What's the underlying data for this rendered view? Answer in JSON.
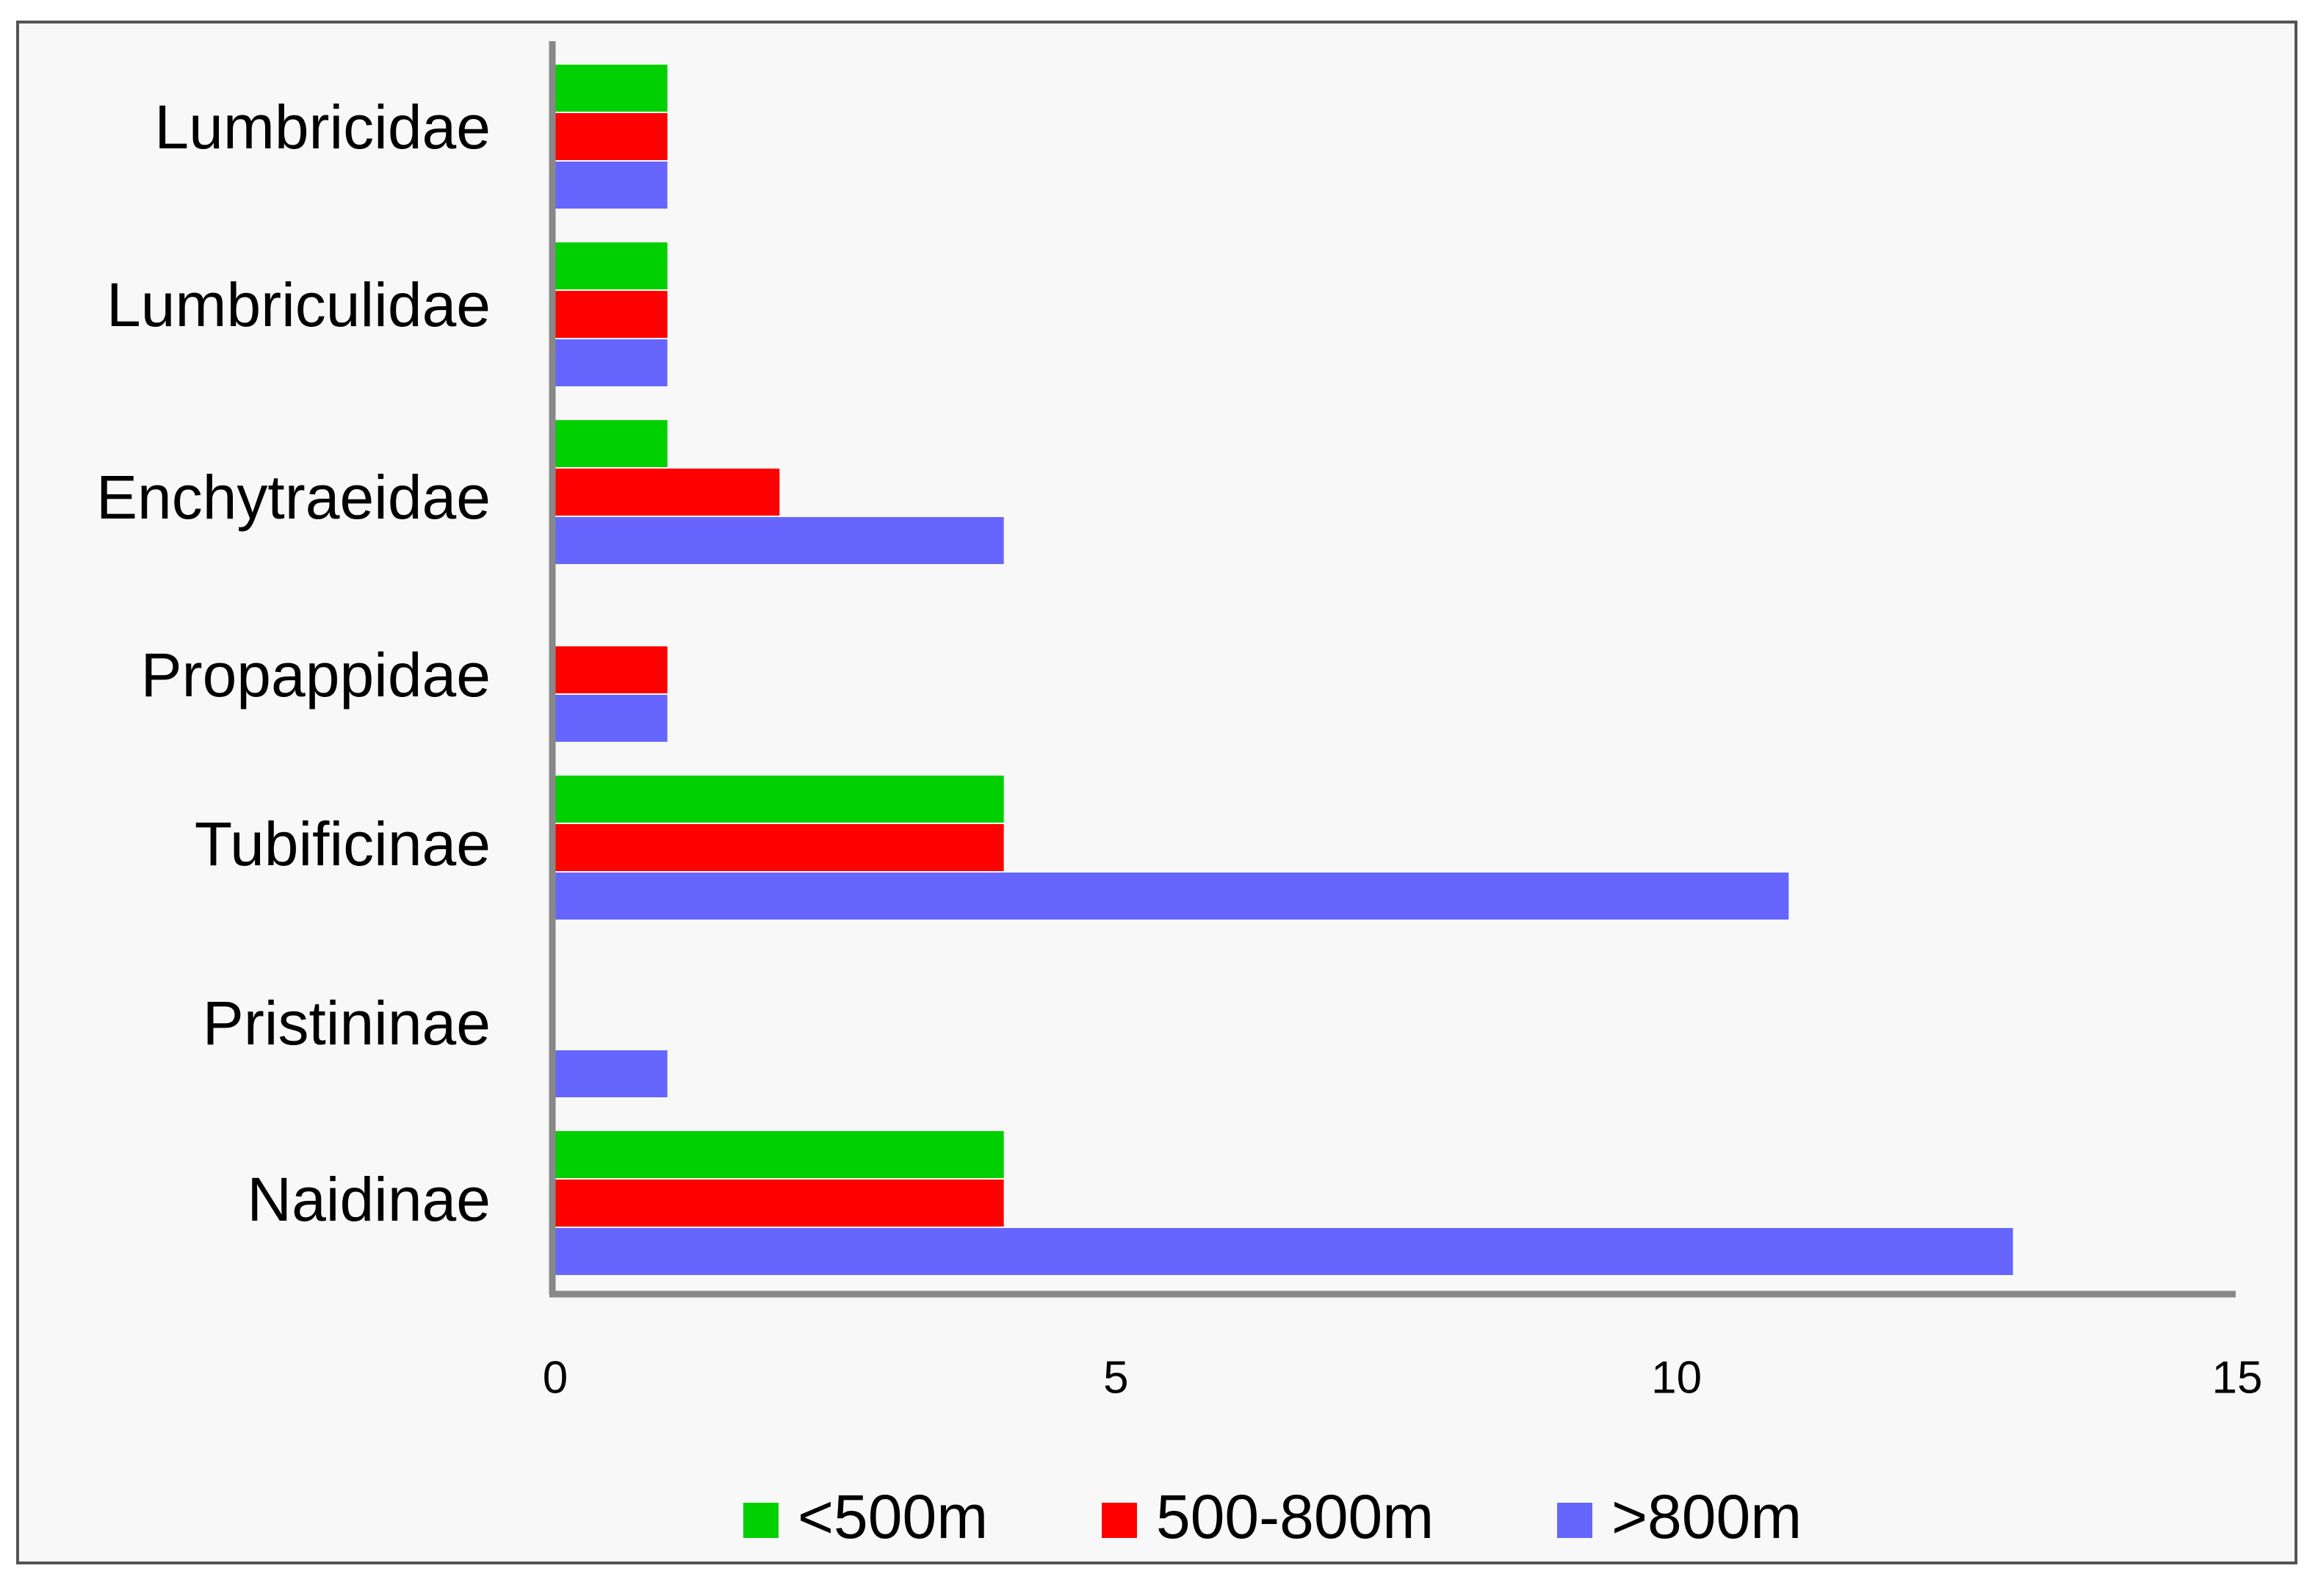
{
  "chart_data": {
    "type": "bar",
    "orientation": "horizontal",
    "categories": [
      "Lumbricidae",
      "Lumbriculidae",
      "Enchytraeidae",
      "Propappidae",
      "Tubificinae",
      "Pristininae",
      "Naidinae"
    ],
    "series": [
      {
        "name": "<500m",
        "color": "#00d000",
        "values": [
          1,
          1,
          1,
          0,
          4,
          0,
          4
        ]
      },
      {
        "name": "500-800m",
        "color": "#ff0000",
        "values": [
          1,
          1,
          2,
          1,
          4,
          0,
          4
        ]
      },
      {
        "name": ">800m",
        "color": "#6666ff",
        "values": [
          1,
          1,
          4,
          1,
          11,
          1,
          13
        ]
      }
    ],
    "xlim": [
      0,
      15
    ],
    "xticks": [
      "0",
      "5",
      "10",
      "15"
    ],
    "title": "",
    "xlabel": "",
    "ylabel": "",
    "grid": false,
    "legend_position": "bottom"
  }
}
